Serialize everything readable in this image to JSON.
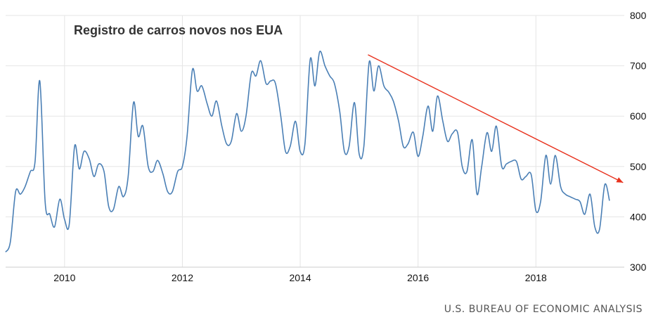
{
  "chart_data": {
    "type": "line",
    "title": "Registro de carros novos nos EUA",
    "source": "U.S. BUREAU OF ECONOMIC ANALYSIS",
    "xlabel": "",
    "ylabel": "",
    "xlim": [
      2009.0,
      2019.5
    ],
    "ylim": [
      300,
      800
    ],
    "x_ticks": [
      "2010",
      "2012",
      "2014",
      "2016",
      "2018"
    ],
    "y_ticks": [
      "300",
      "400",
      "500",
      "600",
      "700",
      "800"
    ],
    "grid": "horizontal",
    "y_axis_side": "right",
    "colors": {
      "series": "#4a7fb5",
      "trend": "#e8321e",
      "grid": "#e5e5e5"
    },
    "series": [
      {
        "x": [
          2009.0,
          2009.08,
          2009.17,
          2009.25,
          2009.33,
          2009.42,
          2009.5,
          2009.58,
          2009.67,
          2009.75,
          2009.83,
          2009.92,
          2010.0,
          2010.08,
          2010.17,
          2010.25,
          2010.33,
          2010.42,
          2010.5,
          2010.58,
          2010.67,
          2010.75,
          2010.83,
          2010.92,
          2011.0,
          2011.08,
          2011.17,
          2011.25,
          2011.33,
          2011.42,
          2011.5,
          2011.58,
          2011.67,
          2011.75,
          2011.83,
          2011.92,
          2012.0,
          2012.08,
          2012.17,
          2012.25,
          2012.33,
          2012.42,
          2012.5,
          2012.58,
          2012.67,
          2012.75,
          2012.83,
          2012.92,
          2013.0,
          2013.08,
          2013.17,
          2013.25,
          2013.33,
          2013.42,
          2013.5,
          2013.58,
          2013.67,
          2013.75,
          2013.83,
          2013.92,
          2014.0,
          2014.08,
          2014.17,
          2014.25,
          2014.33,
          2014.42,
          2014.5,
          2014.58,
          2014.67,
          2014.75,
          2014.83,
          2014.92,
          2015.0,
          2015.08,
          2015.17,
          2015.25,
          2015.33,
          2015.42,
          2015.5,
          2015.58,
          2015.67,
          2015.75,
          2015.83,
          2015.92,
          2016.0,
          2016.08,
          2016.17,
          2016.25,
          2016.33,
          2016.42,
          2016.5,
          2016.58,
          2016.67,
          2016.75,
          2016.83,
          2016.92,
          2017.0,
          2017.08,
          2017.17,
          2017.25,
          2017.33,
          2017.42,
          2017.5,
          2017.58,
          2017.67,
          2017.75,
          2017.83,
          2017.92,
          2018.0,
          2018.08,
          2018.17,
          2018.25,
          2018.33,
          2018.42,
          2018.5,
          2018.58,
          2018.67,
          2018.75,
          2018.83,
          2018.92,
          2019.0,
          2019.08,
          2019.17,
          2019.25
        ],
        "y": [
          330,
          350,
          450,
          445,
          460,
          490,
          510,
          670,
          430,
          405,
          380,
          435,
          395,
          385,
          540,
          495,
          530,
          515,
          480,
          505,
          490,
          420,
          415,
          460,
          440,
          480,
          627,
          560,
          580,
          500,
          490,
          512,
          485,
          450,
          450,
          490,
          500,
          560,
          692,
          650,
          660,
          625,
          600,
          630,
          580,
          545,
          550,
          605,
          570,
          600,
          685,
          680,
          710,
          665,
          670,
          665,
          600,
          530,
          540,
          590,
          530,
          545,
          713,
          660,
          728,
          700,
          680,
          665,
          610,
          530,
          540,
          627,
          525,
          540,
          707,
          650,
          700,
          660,
          648,
          630,
          590,
          540,
          545,
          568,
          520,
          560,
          620,
          570,
          640,
          590,
          550,
          565,
          568,
          500,
          490,
          553,
          445,
          500,
          567,
          530,
          580,
          500,
          505,
          510,
          510,
          475,
          480,
          484,
          412,
          430,
          522,
          465,
          522,
          460,
          445,
          440,
          435,
          430,
          405,
          445,
          380,
          375,
          464,
          432
        ]
      }
    ],
    "trendline": {
      "x": [
        2015.15,
        2019.48
      ],
      "y": [
        722,
        468
      ]
    }
  }
}
